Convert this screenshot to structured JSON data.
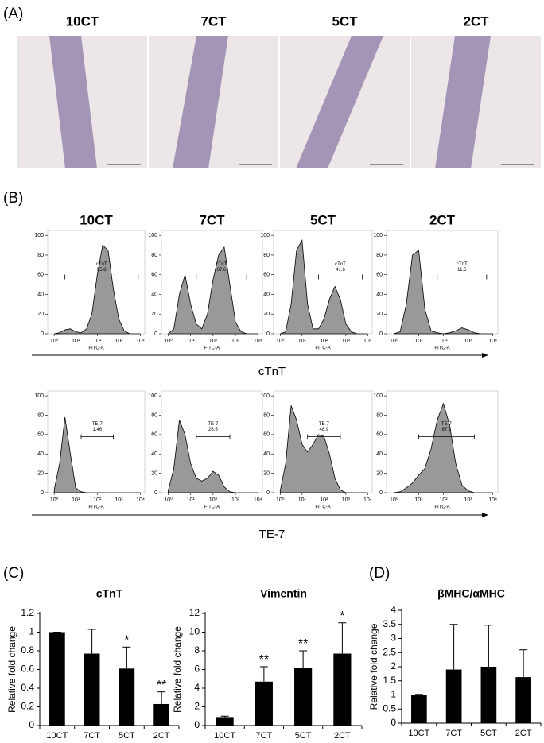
{
  "panel_a": {
    "label": "(A)",
    "columns": [
      "10CT",
      "7CT",
      "5CT",
      "2CT"
    ]
  },
  "panel_b": {
    "label": "(B)",
    "columns": [
      "10CT",
      "7CT",
      "5CT",
      "2CT"
    ],
    "rows": [
      "cTnT",
      "TE-7"
    ]
  },
  "panel_c_label": "(C)",
  "panel_d_label": "(D)",
  "chart_data": [
    {
      "type": "area",
      "xlog": true,
      "x": [
        1,
        1.78,
        3.16,
        5.62,
        10,
        17.8,
        31.6,
        56.2,
        100,
        178,
        316,
        562,
        1000,
        1780,
        3160,
        5620,
        10000
      ],
      "values": [
        0,
        1,
        4,
        5,
        2,
        1,
        5,
        20,
        60,
        90,
        85,
        45,
        15,
        3,
        0,
        0,
        0
      ],
      "color": "#999999",
      "xlim": [
        0.5,
        16000
      ],
      "xticks": [
        {
          "value": 1,
          "label": "10⁰"
        },
        {
          "value": 10,
          "label": "10¹"
        },
        {
          "value": 100,
          "label": "10²"
        },
        {
          "value": 1000,
          "label": "10³"
        },
        {
          "value": 10000,
          "label": "10⁴"
        }
      ],
      "ylim": [
        0,
        105
      ],
      "yticks": [
        0,
        20,
        40,
        60,
        80,
        100
      ],
      "xlabel": "FITC-A",
      "gate": [
        3.16,
        7940
      ],
      "gate_label": "cTnT",
      "gate_value": 95.8
    },
    {
      "type": "area",
      "xlog": true,
      "x": [
        1,
        1.78,
        3.16,
        5.62,
        10,
        17.8,
        31.6,
        56.2,
        100,
        178,
        316,
        562,
        1000,
        1780,
        3160,
        5620,
        10000
      ],
      "values": [
        0,
        5,
        40,
        60,
        30,
        10,
        5,
        20,
        55,
        80,
        88,
        50,
        12,
        2,
        0,
        0,
        0
      ],
      "color": "#999999",
      "xlim": [
        0.5,
        16000
      ],
      "xticks": [
        {
          "value": 1,
          "label": "10⁰"
        },
        {
          "value": 10,
          "label": "10¹"
        },
        {
          "value": 100,
          "label": "10²"
        },
        {
          "value": 1000,
          "label": "10³"
        },
        {
          "value": 10000,
          "label": "10⁴"
        }
      ],
      "ylim": [
        0,
        105
      ],
      "yticks": [
        0,
        20,
        40,
        60,
        80,
        100
      ],
      "xlabel": "FITC-A",
      "gate": [
        17.8,
        3160
      ],
      "gate_label": "cTnT",
      "gate_value": 67.6
    },
    {
      "type": "area",
      "xlog": true,
      "x": [
        1,
        1.78,
        3.16,
        5.62,
        10,
        17.8,
        31.6,
        56.2,
        100,
        178,
        316,
        562,
        1000,
        1780,
        3160,
        5620,
        10000
      ],
      "values": [
        0,
        2,
        30,
        85,
        95,
        30,
        5,
        5,
        15,
        35,
        48,
        35,
        10,
        2,
        0,
        0,
        0
      ],
      "color": "#999999",
      "xlim": [
        0.5,
        16000
      ],
      "xticks": [
        {
          "value": 1,
          "label": "10⁰"
        },
        {
          "value": 10,
          "label": "10¹"
        },
        {
          "value": 100,
          "label": "10²"
        },
        {
          "value": 1000,
          "label": "10³"
        },
        {
          "value": 10000,
          "label": "10⁴"
        }
      ],
      "ylim": [
        0,
        105
      ],
      "yticks": [
        0,
        20,
        40,
        60,
        80,
        100
      ],
      "xlabel": "FITC-A",
      "gate": [
        56.2,
        5620
      ],
      "gate_label": "cTnT",
      "gate_value": 41.6
    },
    {
      "type": "area",
      "xlog": true,
      "x": [
        1,
        1.78,
        3.16,
        5.62,
        10,
        17.8,
        31.6,
        56.2,
        100,
        178,
        316,
        562,
        1000,
        1780,
        3160,
        5620,
        10000
      ],
      "values": [
        0,
        2,
        30,
        80,
        85,
        25,
        3,
        1,
        0,
        1,
        3,
        6,
        4,
        1,
        0,
        0,
        0
      ],
      "color": "#999999",
      "xlim": [
        0.5,
        16000
      ],
      "xticks": [
        {
          "value": 1,
          "label": "10⁰"
        },
        {
          "value": 10,
          "label": "10¹"
        },
        {
          "value": 100,
          "label": "10²"
        },
        {
          "value": 1000,
          "label": "10³"
        },
        {
          "value": 10000,
          "label": "10⁴"
        }
      ],
      "ylim": [
        0,
        105
      ],
      "yticks": [
        0,
        20,
        40,
        60,
        80,
        100
      ],
      "xlabel": "FITC-A",
      "gate": [
        56.2,
        5620
      ],
      "gate_label": "cTnT",
      "gate_value": 11.5
    },
    {
      "type": "area",
      "xlog": true,
      "x": [
        1,
        1.78,
        3.16,
        5.62,
        10,
        17.8,
        31.6,
        56.2,
        100,
        178,
        316,
        562,
        1000,
        1780,
        3160,
        5620,
        10000
      ],
      "values": [
        3,
        30,
        78,
        40,
        5,
        1,
        0,
        0,
        0,
        0,
        0,
        0,
        0,
        0,
        0,
        0,
        0
      ],
      "color": "#999999",
      "xlim": [
        0.5,
        16000
      ],
      "xticks": [
        {
          "value": 1,
          "label": "10⁰"
        },
        {
          "value": 10,
          "label": "10¹"
        },
        {
          "value": 100,
          "label": "10²"
        },
        {
          "value": 1000,
          "label": "10³"
        },
        {
          "value": 10000,
          "label": "10⁴"
        }
      ],
      "ylim": [
        0,
        105
      ],
      "yticks": [
        0,
        20,
        40,
        60,
        80,
        100
      ],
      "xlabel": "FITC-A",
      "gate": [
        17.8,
        562
      ],
      "gate_label": "TE-7",
      "gate_value": 1.46
    },
    {
      "type": "area",
      "xlog": true,
      "x": [
        1,
        1.78,
        3.16,
        5.62,
        10,
        17.8,
        31.6,
        56.2,
        100,
        178,
        316,
        562,
        1000,
        1780,
        3160,
        5620,
        10000
      ],
      "values": [
        2,
        25,
        75,
        60,
        30,
        15,
        12,
        15,
        22,
        18,
        6,
        1,
        0,
        0,
        0,
        0,
        0
      ],
      "color": "#999999",
      "xlim": [
        0.5,
        16000
      ],
      "xticks": [
        {
          "value": 1,
          "label": "10⁰"
        },
        {
          "value": 10,
          "label": "10¹"
        },
        {
          "value": 100,
          "label": "10²"
        },
        {
          "value": 1000,
          "label": "10³"
        },
        {
          "value": 10000,
          "label": "10⁴"
        }
      ],
      "ylim": [
        0,
        105
      ],
      "yticks": [
        0,
        20,
        40,
        60,
        80,
        100
      ],
      "xlabel": "FITC-A",
      "gate": [
        17.8,
        562
      ],
      "gate_label": "TE-7",
      "gate_value": 26.5
    },
    {
      "type": "area",
      "xlog": true,
      "x": [
        1,
        1.78,
        3.16,
        5.62,
        10,
        17.8,
        31.6,
        56.2,
        100,
        178,
        316,
        562,
        1000,
        1780,
        3160,
        5620,
        10000
      ],
      "values": [
        2,
        30,
        90,
        75,
        50,
        42,
        50,
        60,
        58,
        40,
        15,
        3,
        0,
        0,
        0,
        0,
        0
      ],
      "color": "#999999",
      "xlim": [
        0.5,
        16000
      ],
      "xticks": [
        {
          "value": 1,
          "label": "10⁰"
        },
        {
          "value": 10,
          "label": "10¹"
        },
        {
          "value": 100,
          "label": "10²"
        },
        {
          "value": 1000,
          "label": "10³"
        },
        {
          "value": 10000,
          "label": "10⁴"
        }
      ],
      "ylim": [
        0,
        105
      ],
      "yticks": [
        0,
        20,
        40,
        60,
        80,
        100
      ],
      "xlabel": "FITC-A",
      "gate": [
        17.8,
        562
      ],
      "gate_label": "TE-7",
      "gate_value": 48.9
    },
    {
      "type": "area",
      "xlog": true,
      "x": [
        1,
        1.78,
        3.16,
        5.62,
        10,
        17.8,
        31.6,
        56.2,
        100,
        178,
        316,
        562,
        1000,
        1780,
        3160,
        5620,
        10000
      ],
      "values": [
        0,
        1,
        5,
        10,
        18,
        25,
        45,
        75,
        92,
        70,
        30,
        8,
        2,
        0,
        0,
        0,
        0
      ],
      "color": "#999999",
      "xlim": [
        0.5,
        16000
      ],
      "xticks": [
        {
          "value": 1,
          "label": "10⁰"
        },
        {
          "value": 10,
          "label": "10¹"
        },
        {
          "value": 100,
          "label": "10²"
        },
        {
          "value": 1000,
          "label": "10³"
        },
        {
          "value": 10000,
          "label": "10⁴"
        }
      ],
      "ylim": [
        0,
        105
      ],
      "yticks": [
        0,
        20,
        40,
        60,
        80,
        100
      ],
      "xlabel": "FITC-A",
      "gate": [
        10,
        1780
      ],
      "gate_label": "TE-7",
      "gate_value": 87.3
    },
    {
      "type": "bar",
      "title": "cTnT",
      "ylabel": "Relative fold change",
      "categories": [
        "10CT",
        "7CT",
        "5CT",
        "2CT"
      ],
      "values": [
        1,
        0.77,
        0.61,
        0.23
      ],
      "errors": [
        0,
        0.26,
        0.23,
        0.13
      ],
      "annotations": [
        null,
        null,
        "*",
        "**"
      ],
      "color": "#000000",
      "ylim": [
        0,
        1.2
      ],
      "yticks": [
        0,
        0.2,
        0.4,
        0.6,
        0.8,
        1,
        1.2
      ]
    },
    {
      "type": "bar",
      "title": "Vimentin",
      "ylabel": "Relative fold change",
      "categories": [
        "10CT",
        "7CT",
        "5CT",
        "2CT"
      ],
      "values": [
        0.9,
        4.7,
        6.2,
        7.7
      ],
      "errors": [
        0.1,
        1.6,
        1.8,
        3.3
      ],
      "annotations": [
        null,
        "**",
        "**",
        "*"
      ],
      "color": "#000000",
      "ylim": [
        0,
        12
      ],
      "yticks": [
        0,
        2,
        4,
        6,
        8,
        10,
        12
      ]
    },
    {
      "type": "bar",
      "title": "βMHC/αMHC",
      "ylabel": "Relative fold change",
      "categories": [
        "10CT",
        "7CT",
        "5CT",
        "2CT"
      ],
      "values": [
        1,
        1.9,
        2,
        1.63
      ],
      "errors": [
        0.02,
        1.6,
        1.47,
        0.97
      ],
      "annotations": [
        null,
        null,
        null,
        null
      ],
      "color": "#000000",
      "ylim": [
        0,
        4
      ],
      "yticks": [
        0,
        0.5,
        1,
        1.5,
        2,
        2.5,
        3,
        3.5,
        4
      ]
    }
  ]
}
